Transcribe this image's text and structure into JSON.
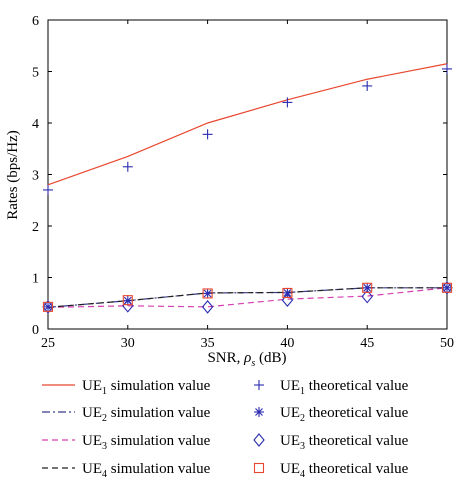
{
  "chart_data": {
    "type": "line",
    "xlabel_main": "SNR, ",
    "xlabel_symbol": "ρ",
    "xlabel_sub": "s",
    "xlabel_unit": " (dB)",
    "ylabel": "Rates (bps/Hz)",
    "x": [
      25,
      30,
      35,
      40,
      45,
      50
    ],
    "xlim": [
      25,
      50
    ],
    "ylim": [
      0,
      6
    ],
    "xticks": [
      "25",
      "30",
      "35",
      "40",
      "45",
      "50"
    ],
    "yticks": [
      "0",
      "1",
      "2",
      "3",
      "4",
      "5",
      "6"
    ],
    "grid": false,
    "legend_placement": "below",
    "series": [
      {
        "name": "UE1 simulation value",
        "label_main": "UE",
        "label_sub": "1",
        "label_rest": " simulation value",
        "kind": "line",
        "color": "#e8472e",
        "dash": "solid",
        "values": [
          2.8,
          3.35,
          4.0,
          4.45,
          4.85,
          5.15
        ]
      },
      {
        "name": "UE2 simulation value",
        "label_main": "UE",
        "label_sub": "2",
        "label_rest": " simulation value",
        "kind": "line",
        "color": "#3a3a8c",
        "dash": "dashdot",
        "values": [
          0.42,
          0.55,
          0.7,
          0.71,
          0.8,
          0.8
        ]
      },
      {
        "name": "UE3 simulation value",
        "label_main": "UE",
        "label_sub": "3",
        "label_rest": " simulation value",
        "kind": "line",
        "color": "#d63fb0",
        "dash": "dashed",
        "values": [
          0.42,
          0.45,
          0.43,
          0.58,
          0.64,
          0.8
        ]
      },
      {
        "name": "UE4 simulation value",
        "label_main": "UE",
        "label_sub": "4",
        "label_rest": " simulation value",
        "kind": "line",
        "color": "#222222",
        "dash": "dashed",
        "values": [
          0.42,
          0.55,
          0.7,
          0.71,
          0.8,
          0.8
        ]
      },
      {
        "name": "UE1 theoretical value",
        "label_main": "UE",
        "label_sub": "1",
        "label_rest": " theoretical value",
        "kind": "marker",
        "marker": "plus",
        "color": "#2b2bb0",
        "values": [
          2.7,
          3.15,
          3.78,
          4.4,
          4.72,
          5.05
        ]
      },
      {
        "name": "UE2 theoretical value",
        "label_main": "UE",
        "label_sub": "2",
        "label_rest": " theoretical value",
        "kind": "marker",
        "marker": "star",
        "color": "#2b2bb0",
        "values": [
          0.43,
          0.55,
          0.69,
          0.7,
          0.8,
          0.8
        ]
      },
      {
        "name": "UE3 theoretical value",
        "label_main": "UE",
        "label_sub": "3",
        "label_rest": " theoretical value",
        "kind": "marker",
        "marker": "diamond",
        "color": "#2b2bb0",
        "values": [
          0.43,
          0.45,
          0.43,
          0.56,
          0.63,
          0.8
        ]
      },
      {
        "name": "UE4 theoretical value",
        "label_main": "UE",
        "label_sub": "4",
        "label_rest": " theoretical value",
        "kind": "marker",
        "marker": "square",
        "color": "#e8472e",
        "values": [
          0.43,
          0.56,
          0.69,
          0.7,
          0.8,
          0.8
        ]
      }
    ]
  }
}
